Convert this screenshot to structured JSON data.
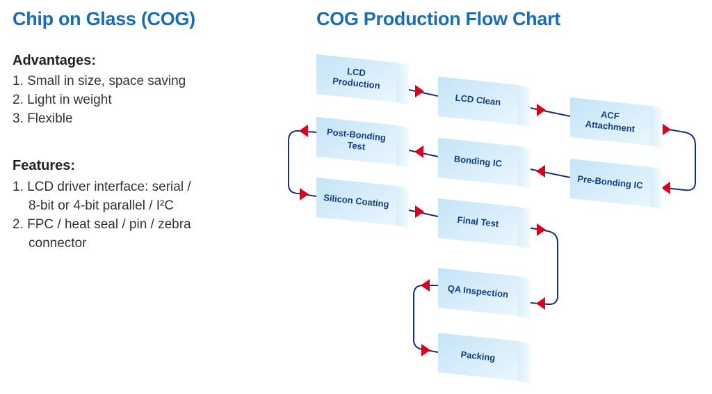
{
  "left": {
    "title": "Chip on Glass (COG)",
    "advantages_heading": "Advantages:",
    "advantages": [
      "1. Small in size, space saving",
      "2. Light in weight",
      "3. Flexible"
    ],
    "features_heading": "Features:",
    "features": [
      {
        "line1": "1. LCD driver interface: serial /",
        "line2": "8-bit or 4-bit parallel / I²C"
      },
      {
        "line1": "2. FPC / heat seal / pin / zebra",
        "line2": "connector"
      }
    ]
  },
  "flow": {
    "title": "COG Production Flow Chart",
    "colors": {
      "box": "#cde8f8",
      "line": "#1a2f7a",
      "arrow": "#d9001b",
      "title": "#1a6db5"
    },
    "steps": [
      {
        "l1": "LCD",
        "l2": "Production"
      },
      {
        "l1": "LCD Clean",
        "l2": ""
      },
      {
        "l1": "ACF",
        "l2": "Attachment"
      },
      {
        "l1": "Post-Bonding",
        "l2": "Test"
      },
      {
        "l1": "Bonding IC",
        "l2": ""
      },
      {
        "l1": "Pre-Bonding IC",
        "l2": ""
      },
      {
        "l1": "Silicon Coating",
        "l2": ""
      },
      {
        "l1": "Final Test",
        "l2": ""
      },
      {
        "l1": "QA Inspection",
        "l2": ""
      },
      {
        "l1": "Packing",
        "l2": ""
      }
    ]
  }
}
